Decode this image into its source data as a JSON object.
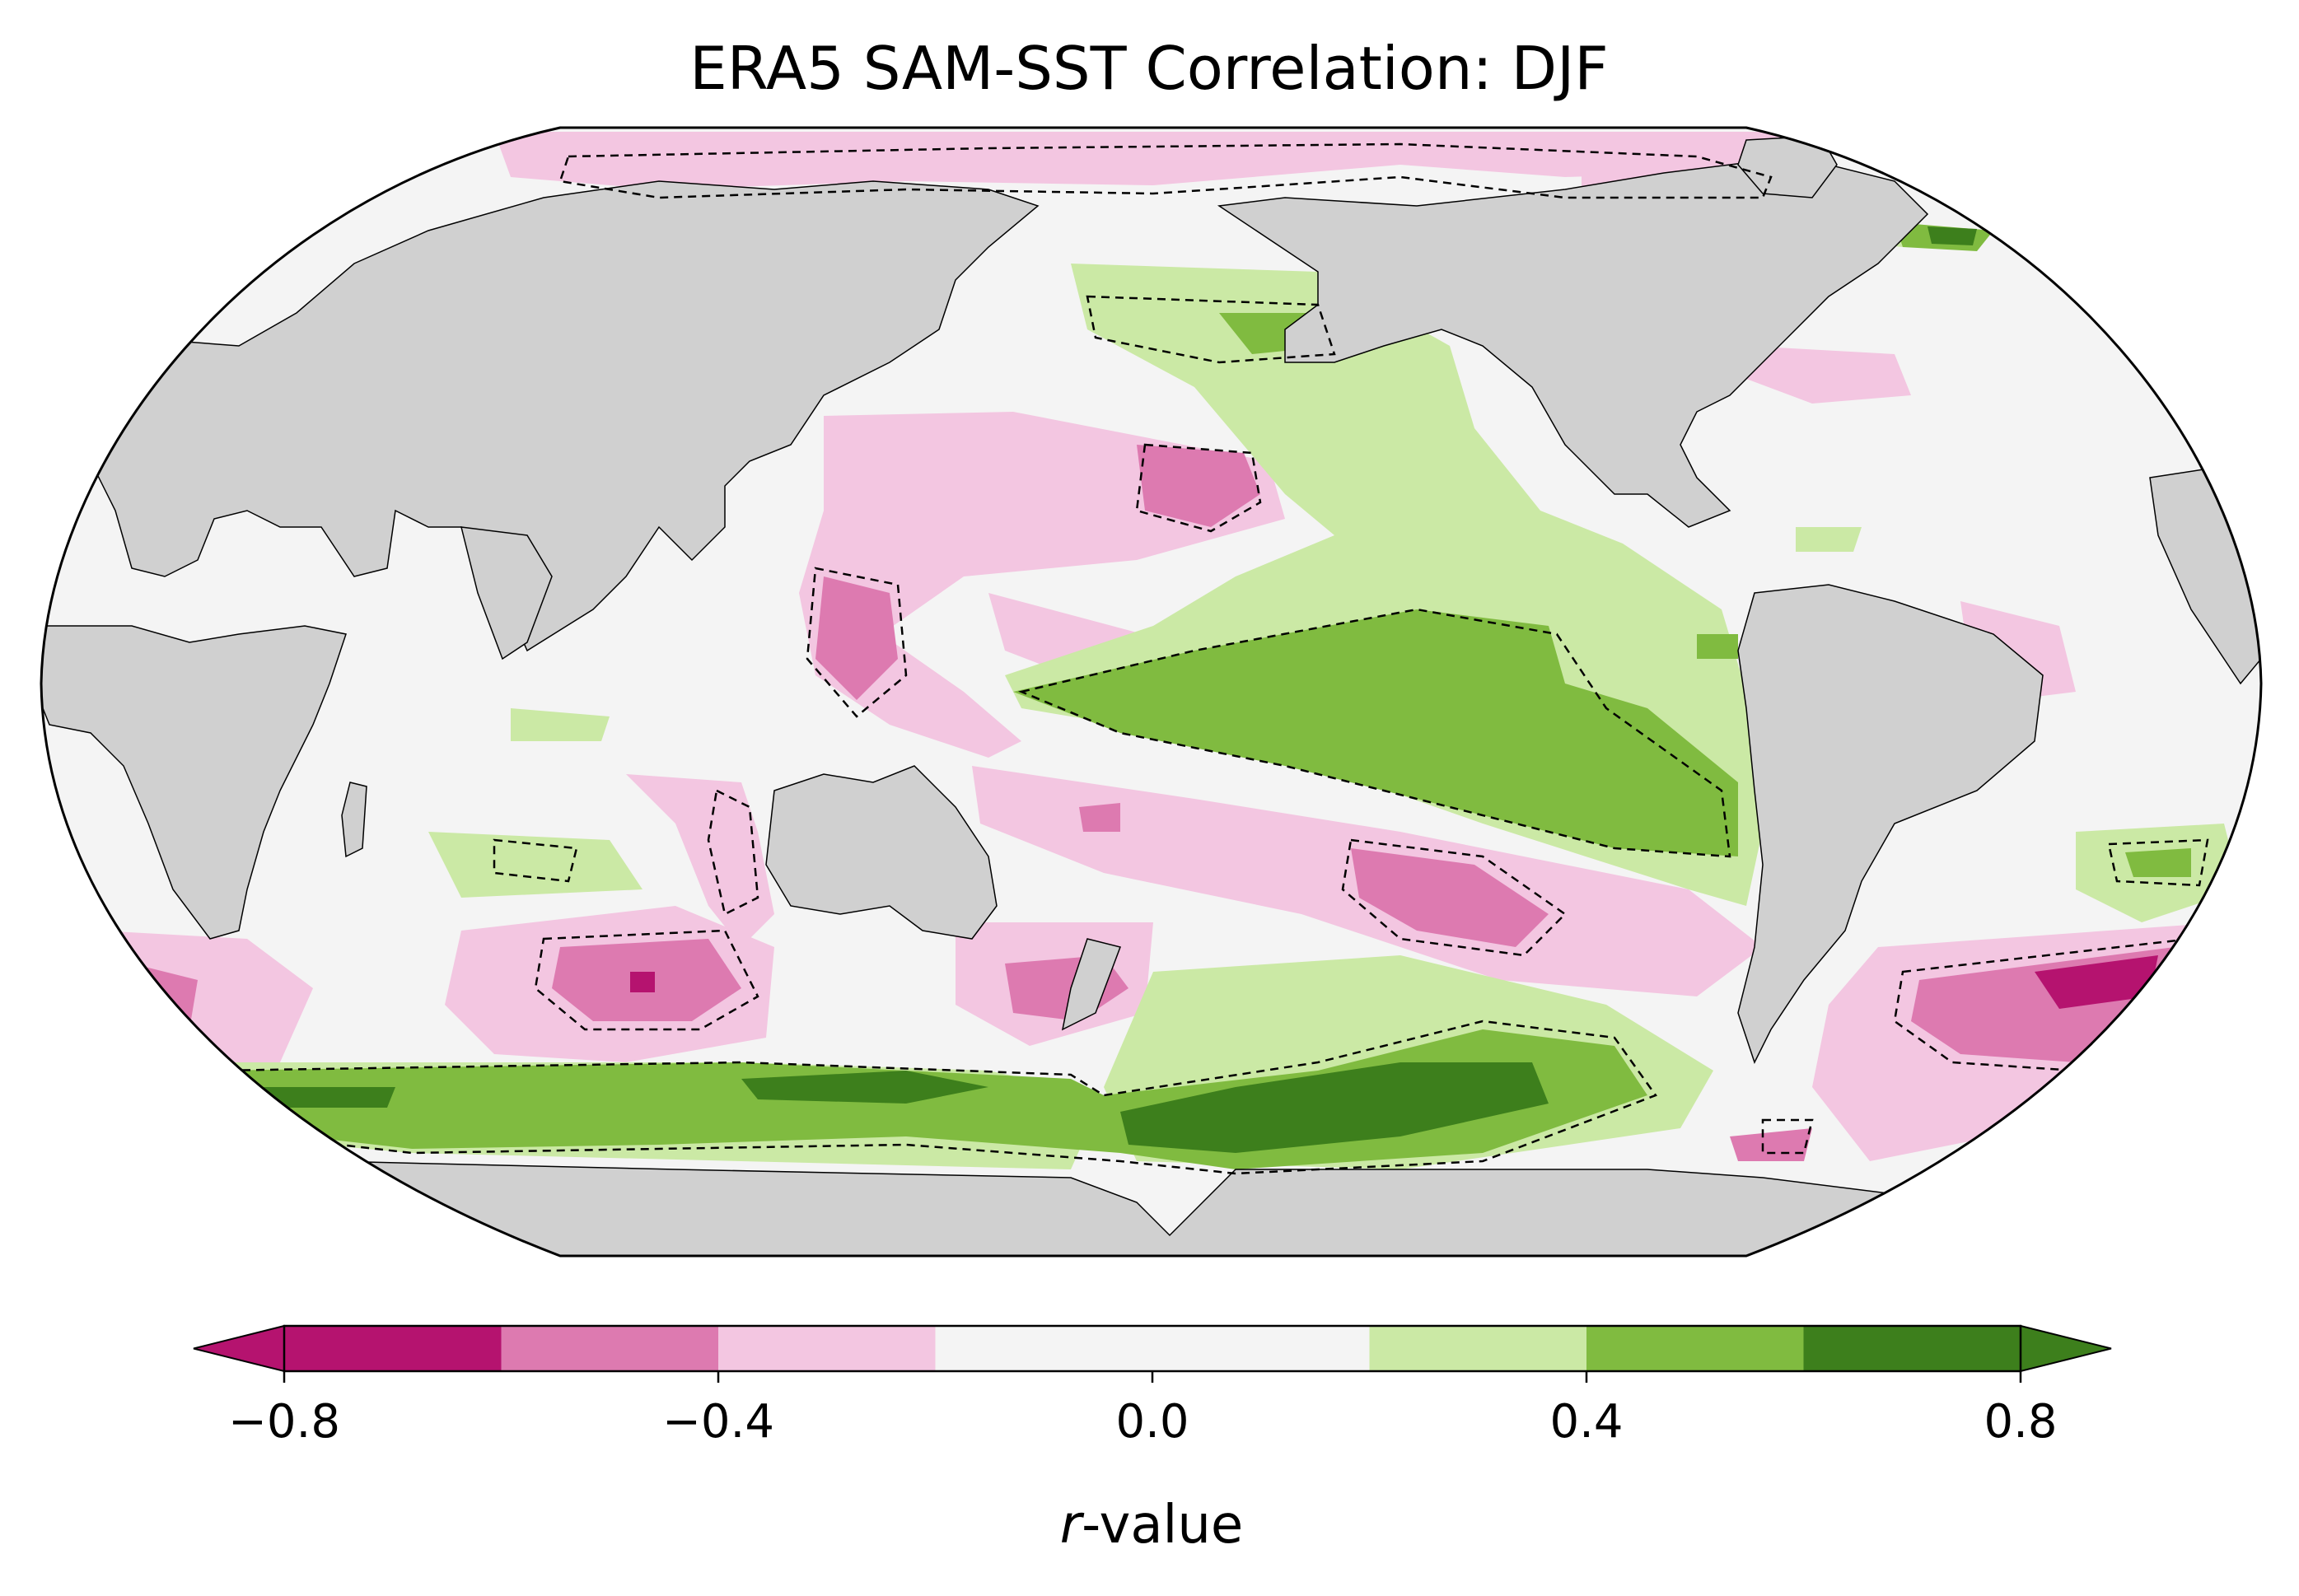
{
  "title": "ERA5 SAM-SST Correlation: DJF",
  "colorbar": {
    "label_italic": "r",
    "label_rest": "-value",
    "ticks": [
      "−0.8",
      "−0.4",
      "0.0",
      "0.4",
      "0.8"
    ],
    "tick_values": [
      -0.8,
      -0.4,
      0.0,
      0.4,
      0.8
    ],
    "boundaries": [
      -0.8,
      -0.6,
      -0.4,
      -0.2,
      0.2,
      0.4,
      0.6,
      0.8
    ],
    "colors": {
      "under": "#b5136f",
      "bins": [
        "#b5136f",
        "#dd7ab0",
        "#f3c6e1",
        "#f4f4f4",
        "#cbe9a5",
        "#80bb40",
        "#3d7f1c"
      ],
      "over": "#3d7f1c"
    },
    "extend": "both"
  },
  "map": {
    "projection": "Robinson",
    "central_longitude": 180,
    "ocean_color": "#f4f4f4",
    "land_color": "#d0d0d0",
    "significance_contour": "dashed"
  }
}
